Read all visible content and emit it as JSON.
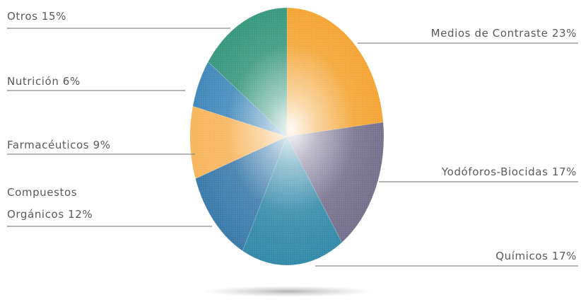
{
  "chart_data": {
    "type": "pie",
    "title": "",
    "slices": [
      {
        "name": "Medios de Contraste",
        "value": 23,
        "label": "Medios de Contraste 23%",
        "color": "#f3a02a"
      },
      {
        "name": "Yodóforos-Biocidas",
        "value": 17,
        "label": "Yodóforos-Biocidas 17%",
        "color": "#6f6a88"
      },
      {
        "name": "Químicos",
        "value": 17,
        "label": "Químicos 17%",
        "color": "#2d86a6"
      },
      {
        "name": "Compuestos Orgánicos",
        "value": 12,
        "label_lines": [
          "Compuestos",
          "Orgánicos 12%"
        ],
        "color": "#3577a8"
      },
      {
        "name": "Farmacéuticos",
        "value": 9,
        "label": "Farmacéuticos 9%",
        "color": "#f7b256"
      },
      {
        "name": "Nutrición",
        "value": 6,
        "label": "Nutrición 6%",
        "color": "#3a84b8"
      },
      {
        "name": "Otros",
        "value": 15,
        "label": "Otros 15%",
        "color": "#2f9377"
      }
    ]
  }
}
